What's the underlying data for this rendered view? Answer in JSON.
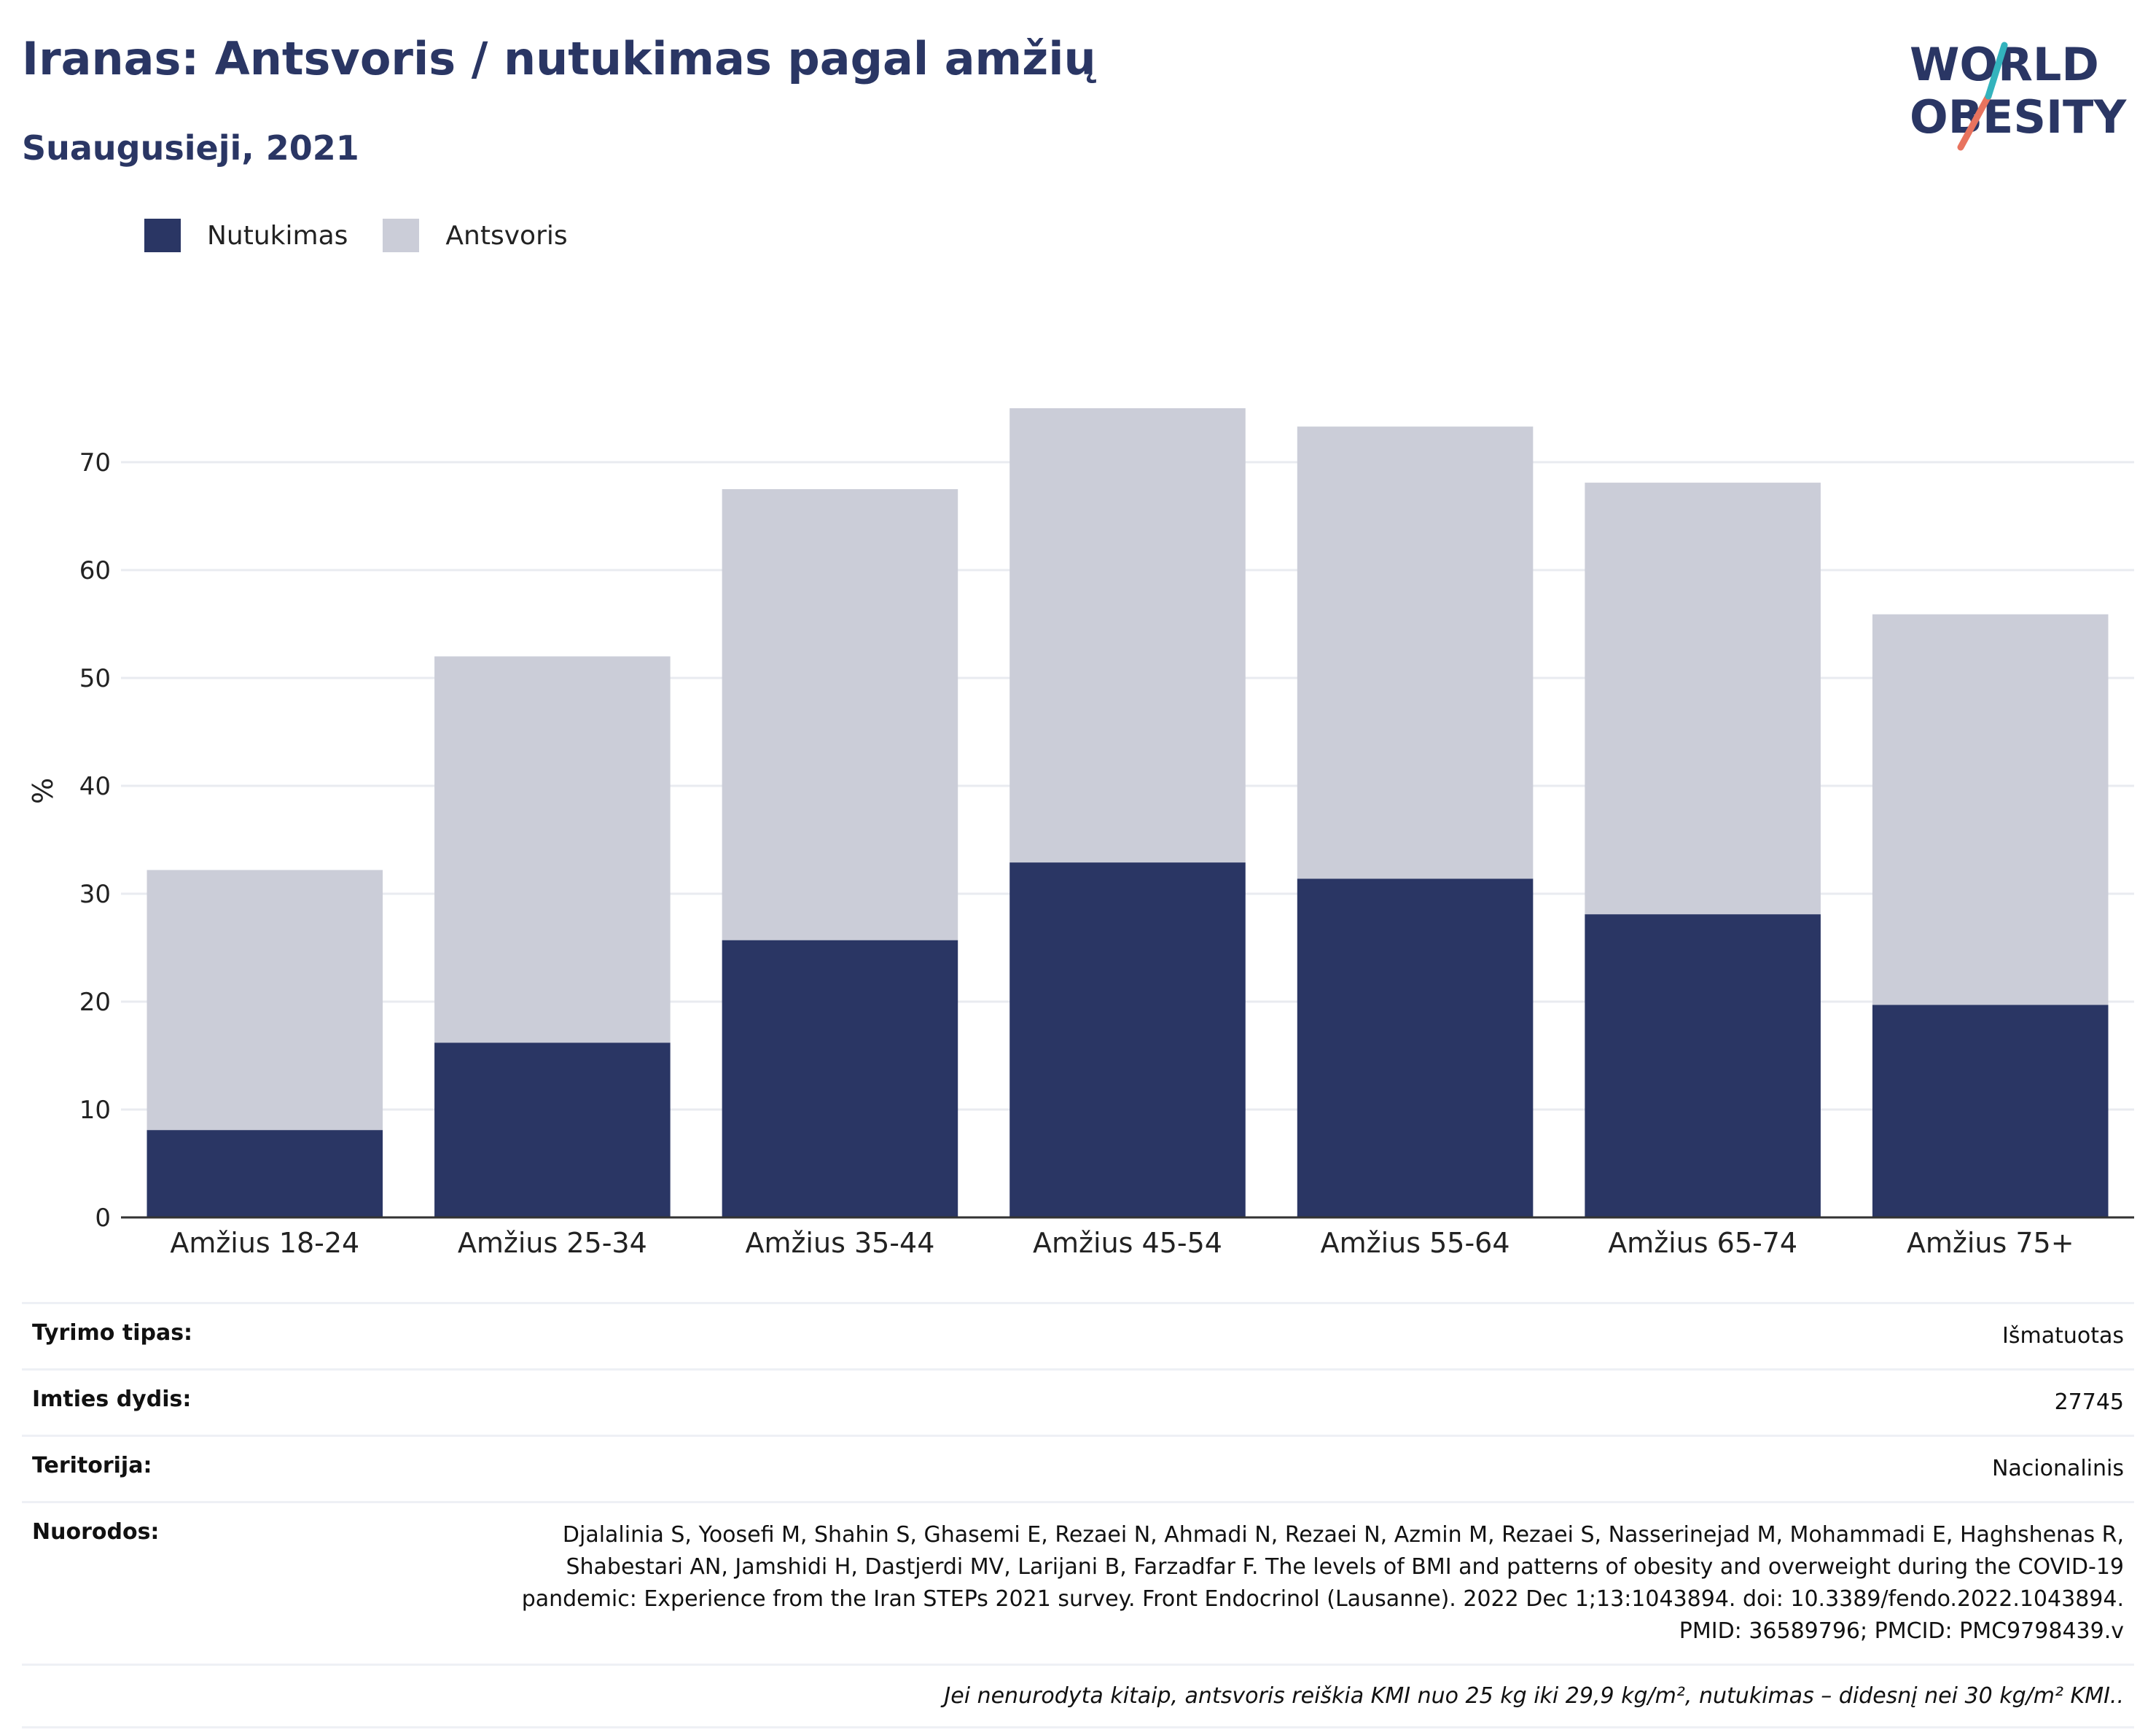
{
  "header": {
    "title": "Iranas: Antsvoris / nutukimas pagal amžių",
    "subtitle": "Suaugusieji, 2021",
    "logo_line1": "WORLD",
    "logo_line2": "OBESITY"
  },
  "legend": {
    "items": [
      {
        "label": "Nutukimas",
        "color": "#2a3664"
      },
      {
        "label": "Antsvoris",
        "color": "#cbcdd8"
      }
    ]
  },
  "chart_data": {
    "type": "bar",
    "stacked": true,
    "categories": [
      "Amžius 18-24",
      "Amžius 25-34",
      "Amžius 35-44",
      "Amžius 45-54",
      "Amžius 55-64",
      "Amžius 65-74",
      "Amžius 75+"
    ],
    "series": [
      {
        "name": "Nutukimas",
        "color": "#2a3664",
        "values": [
          8.1,
          16.2,
          25.7,
          32.9,
          31.4,
          28.1,
          19.7
        ]
      },
      {
        "name": "Antsvoris",
        "color": "#cbcdd8",
        "values": [
          24.1,
          35.8,
          41.8,
          42.1,
          41.9,
          40.0,
          36.2
        ]
      }
    ],
    "totals": [
      32.2,
      52.0,
      67.5,
      75.0,
      73.3,
      68.1,
      55.9
    ],
    "ylabel": "%",
    "xlabel": "",
    "yticks": [
      "0",
      "10",
      "20",
      "30",
      "40",
      "50",
      "60",
      "70"
    ],
    "ylim": [
      0,
      75
    ],
    "grid": true
  },
  "info": {
    "rows": [
      {
        "key": "Tyrimo tipas:",
        "value": "Išmatuotas"
      },
      {
        "key": "Imties dydis:",
        "value": "27745"
      },
      {
        "key": "Teritorija:",
        "value": "Nacionalinis"
      },
      {
        "key": "Nuorodos:",
        "value": "Djalalinia S, Yoosefi M, Shahin S, Ghasemi E, Rezaei N, Ahmadi N, Rezaei N, Azmin M, Rezaei S, Nasserinejad M, Mohammadi E, Haghshenas R, Shabestari AN, Jamshidi H, Dastjerdi MV, Larijani B, Farzadfar F. The levels of BMI and patterns of obesity and overweight during the COVID-19 pandemic: Experience from the Iran STEPs 2021 survey. Front Endocrinol (Lausanne). 2022 Dec 1;13:1043894. doi: 10.3389/fendo.2022.1043894. PMID: 36589796; PMCID: PMC9798439.v"
      }
    ],
    "note": "Jei nenurodyta kitaip, antsvoris reiškia KMI nuo 25 kg iki 29,9 kg/m², nutukimas – didesnį nei 30 kg/m² KMI.."
  }
}
